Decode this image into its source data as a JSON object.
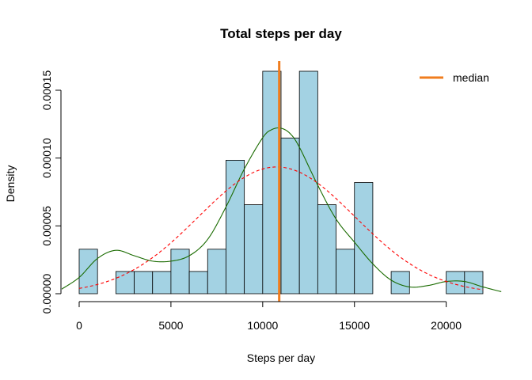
{
  "chart_data": {
    "type": "histogram",
    "title": "Total steps per day",
    "xlabel": "Steps per day",
    "ylabel": "Density",
    "xlim": [
      0,
      22000
    ],
    "ylim": [
      0,
      0.000164
    ],
    "x_ticks": [
      "0",
      "5000",
      "10000",
      "15000",
      "20000"
    ],
    "x_tick_values": [
      0,
      5000,
      10000,
      15000,
      20000
    ],
    "y_ticks": [
      "0.00000",
      "0.00005",
      "0.00010",
      "0.00015"
    ],
    "y_tick_values": [
      0,
      5e-05,
      0.0001,
      0.00015
    ],
    "bin_width": 1000,
    "bins": [
      {
        "start": 0,
        "end": 1000,
        "density": 3.28e-05
      },
      {
        "start": 1000,
        "end": 2000,
        "density": 0
      },
      {
        "start": 2000,
        "end": 3000,
        "density": 1.64e-05
      },
      {
        "start": 3000,
        "end": 4000,
        "density": 1.64e-05
      },
      {
        "start": 4000,
        "end": 5000,
        "density": 1.64e-05
      },
      {
        "start": 5000,
        "end": 6000,
        "density": 3.28e-05
      },
      {
        "start": 6000,
        "end": 7000,
        "density": 1.64e-05
      },
      {
        "start": 7000,
        "end": 8000,
        "density": 3.28e-05
      },
      {
        "start": 8000,
        "end": 9000,
        "density": 9.84e-05
      },
      {
        "start": 9000,
        "end": 10000,
        "density": 6.56e-05
      },
      {
        "start": 10000,
        "end": 11000,
        "density": 0.000164
      },
      {
        "start": 11000,
        "end": 12000,
        "density": 0.0001148
      },
      {
        "start": 12000,
        "end": 13000,
        "density": 0.000164
      },
      {
        "start": 13000,
        "end": 14000,
        "density": 6.56e-05
      },
      {
        "start": 14000,
        "end": 15000,
        "density": 3.28e-05
      },
      {
        "start": 15000,
        "end": 16000,
        "density": 8.2e-05
      },
      {
        "start": 16000,
        "end": 17000,
        "density": 0
      },
      {
        "start": 17000,
        "end": 18000,
        "density": 1.64e-05
      },
      {
        "start": 18000,
        "end": 19000,
        "density": 0
      },
      {
        "start": 19000,
        "end": 20000,
        "density": 0
      },
      {
        "start": 20000,
        "end": 21000,
        "density": 1.64e-05
      },
      {
        "start": 21000,
        "end": 22000,
        "density": 1.64e-05
      }
    ],
    "median": 10900,
    "series": [
      {
        "kind": "density",
        "color": "#1a6b00",
        "dash": "solid",
        "x": [
          -1000,
          0,
          1000,
          2000,
          3000,
          4000,
          5000,
          6000,
          7000,
          8000,
          9000,
          10000,
          10500,
          11000,
          11500,
          12000,
          13000,
          14000,
          15000,
          16000,
          17000,
          18000,
          19000,
          20000,
          21000,
          22000,
          23000
        ],
        "y": [
          3e-06,
          1.2e-05,
          2.6e-05,
          3.2e-05,
          2.8e-05,
          2.4e-05,
          2.4e-05,
          2.8e-05,
          4e-05,
          6.4e-05,
          9.2e-05,
          0.000115,
          0.000121,
          0.000122,
          0.000118,
          0.000108,
          8e-05,
          5.5e-05,
          3.8e-05,
          2.2e-05,
          1e-05,
          5e-06,
          6e-06,
          9e-06,
          9e-06,
          5e-06,
          1.5e-06
        ]
      },
      {
        "kind": "normal",
        "color": "#ff0000",
        "dash": "dashed",
        "mean": 10766,
        "sd": 4269,
        "x_range": [
          0,
          22000
        ]
      }
    ],
    "colors": {
      "bar_fill": "#a3d2e3",
      "bar_stroke": "#000000",
      "median_line": "#f07d1e"
    },
    "legend": {
      "position": "top-right",
      "entries": [
        {
          "label": "median",
          "color": "#f07d1e"
        }
      ]
    },
    "grid": false
  }
}
